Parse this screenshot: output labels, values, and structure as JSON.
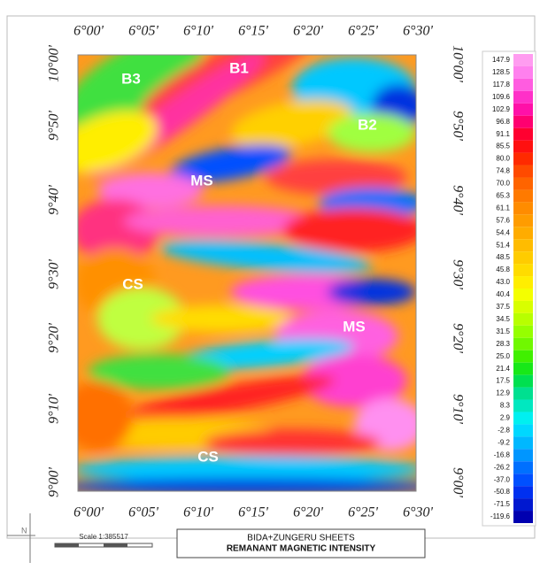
{
  "lon_labels_top": [
    "6°00'",
    "6°05'",
    "6°10'",
    "6°15'",
    "6°20'",
    "6°25'",
    "6°30'"
  ],
  "lon_labels_bottom": [
    "6°00'",
    "6°05'",
    "6°10'",
    "6°15'",
    "6°20'",
    "6°25'",
    "6°30'"
  ],
  "lat_labels_left": [
    "10°00'",
    "9°50'",
    "9°40'",
    "9°30'",
    "9°20'",
    "9°10'",
    "9°00'"
  ],
  "lat_labels_right": [
    "10°00'",
    "9°50'",
    "9°40'",
    "9°30'",
    "9°20'",
    "9°10'",
    "9°00'"
  ],
  "map_labels": [
    "B3",
    "B1",
    "B2",
    "MS",
    "CS",
    "MS",
    "CS"
  ],
  "legend": {
    "labels": [
      "147.9",
      "128.5",
      "117.8",
      "109.6",
      "102.9",
      "96.8",
      "91.1",
      "85.5",
      "80.0",
      "74.8",
      "70.0",
      "65.3",
      "61.1",
      "57.6",
      "54.4",
      "51.4",
      "48.5",
      "45.8",
      "43.0",
      "40.4",
      "37.5",
      "34.5",
      "31.5",
      "28.3",
      "25.0",
      "21.4",
      "17.5",
      "12.9",
      "8.3",
      "2.9",
      "-2.8",
      "-9.2",
      "-16.8",
      "-26.2",
      "-37.0",
      "-50.8",
      "-71.5",
      "-119.6"
    ],
    "colors": [
      "#ff9cf0",
      "#ff80ee",
      "#ff5ce0",
      "#ff30c8",
      "#ff10a8",
      "#ff0070",
      "#ff0030",
      "#ff1010",
      "#ff2a00",
      "#ff4a00",
      "#ff6400",
      "#ff7a00",
      "#ff8c00",
      "#ff9c00",
      "#ffac00",
      "#ffbc00",
      "#ffcc00",
      "#ffdc00",
      "#ffee00",
      "#f4ff00",
      "#d8ff00",
      "#b8ff00",
      "#96ff00",
      "#70f800",
      "#40f000",
      "#18e818",
      "#00e050",
      "#00e090",
      "#00e8c0",
      "#00f0f0",
      "#00d8ff",
      "#00b8ff",
      "#0096ff",
      "#0070ff",
      "#0050ff",
      "#0030f0",
      "#0018d0",
      "#0000b0"
    ]
  },
  "scale": "Scale 1:385517",
  "title_box": {
    "line1": "BIDA+ZUNGERU SHEETS",
    "line2": "REMANANT MAGNETIC INTENSITY"
  }
}
